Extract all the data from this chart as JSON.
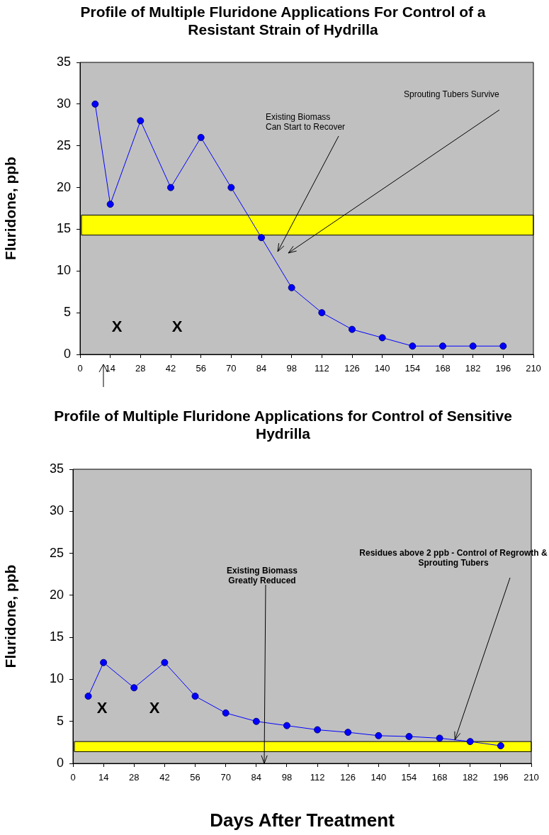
{
  "chart_data": [
    {
      "type": "line",
      "title": "Profile of Multiple Fluridone Applications For Control of a Resistant Strain of Hydrilla",
      "ylabel": "Fluridone, ppb",
      "x": [
        7,
        14,
        28,
        42,
        56,
        70,
        84,
        98,
        112,
        126,
        140,
        154,
        168,
        182,
        196
      ],
      "series": [
        {
          "color": "#0000ff",
          "values": [
            30,
            18,
            28,
            20,
            26,
            20,
            14,
            8,
            5,
            3,
            2,
            1,
            1,
            1,
            1
          ]
        }
      ],
      "xlim": [
        0,
        210
      ],
      "xticks": [
        0,
        14,
        28,
        42,
        56,
        70,
        84,
        98,
        112,
        126,
        140,
        154,
        168,
        182,
        196,
        210
      ],
      "ylim": [
        0,
        35
      ],
      "yticks": [
        0,
        5,
        10,
        15,
        20,
        25,
        30,
        35
      ],
      "marker": "circle",
      "line_style": "solid",
      "grid": false,
      "legend": false,
      "bands": [
        {
          "axis": "y",
          "from": 14.3,
          "to": 16.7,
          "color": "#ffff00"
        }
      ],
      "annotations": [
        "X",
        "X",
        "Existing Biomass Can Start to Recover",
        "Sprouting Tubers Survive"
      ]
    },
    {
      "type": "line",
      "title": "Profile of Multiple Fluridone Applications for Control of Sensitive Hydrilla",
      "ylabel": "Fluridone, ppb",
      "xlabel": "Days After Treatment",
      "x": [
        7,
        14,
        28,
        42,
        56,
        70,
        84,
        98,
        112,
        126,
        140,
        154,
        168,
        182,
        196
      ],
      "series": [
        {
          "color": "#0000ff",
          "values": [
            8,
            12,
            9,
            12,
            8,
            6,
            5,
            4.5,
            4,
            3.7,
            3.3,
            3.2,
            3,
            2.6,
            2.1
          ]
        }
      ],
      "xlim": [
        0,
        210
      ],
      "xticks": [
        0,
        14,
        28,
        42,
        56,
        70,
        84,
        98,
        112,
        126,
        140,
        154,
        168,
        182,
        196,
        210
      ],
      "ylim": [
        0,
        35
      ],
      "yticks": [
        0,
        5,
        10,
        15,
        20,
        25,
        30,
        35
      ],
      "marker": "circle",
      "line_style": "solid",
      "grid": false,
      "legend": false,
      "bands": [
        {
          "axis": "y",
          "from": 1.4,
          "to": 2.6,
          "color": "#ffff00"
        }
      ],
      "annotations": [
        "X",
        "X",
        "Existing Biomass Greatly Reduced",
        {
          "text": "Residues above 2 ppb - Control of Regrowth & Sprouting Tubers",
          "x": 175,
          "y": 2.8
        }
      ]
    }
  ]
}
